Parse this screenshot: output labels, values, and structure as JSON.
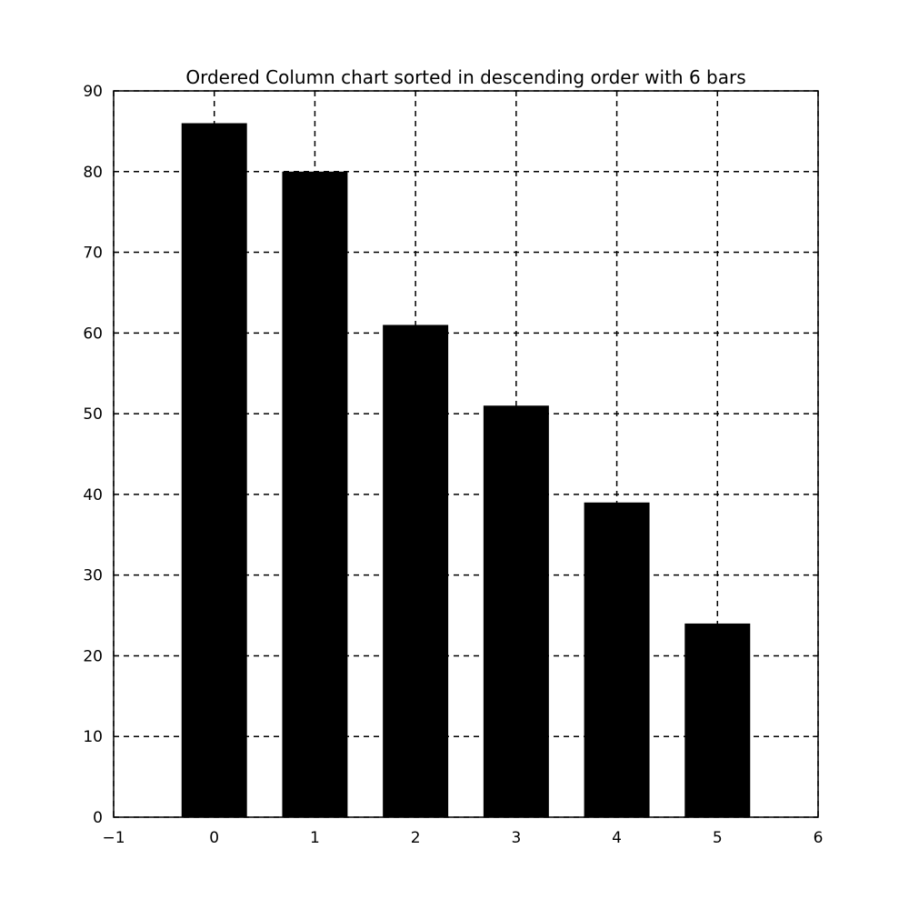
{
  "chart_data": {
    "type": "bar",
    "title": "Ordered Column chart sorted in descending order with 6 bars",
    "xlabel": "",
    "ylabel": "",
    "x": [
      0,
      1,
      2,
      3,
      4,
      5
    ],
    "values": [
      86,
      80,
      61,
      51,
      39,
      24
    ],
    "bar_width": 0.65,
    "xlim": [
      -1,
      6
    ],
    "ylim": [
      0,
      90
    ],
    "x_ticks": [
      -1,
      0,
      1,
      2,
      3,
      4,
      5,
      6
    ],
    "x_tick_labels": [
      "−1",
      "0",
      "1",
      "2",
      "3",
      "4",
      "5",
      "6"
    ],
    "y_ticks": [
      0,
      10,
      20,
      30,
      40,
      50,
      60,
      70,
      80,
      90
    ],
    "y_tick_labels": [
      "0",
      "10",
      "20",
      "30",
      "40",
      "50",
      "60",
      "70",
      "80",
      "90"
    ],
    "grid": true,
    "grid_style": "dashed",
    "bar_color": "#000000",
    "grid_color": "#000000",
    "legend": "none"
  }
}
